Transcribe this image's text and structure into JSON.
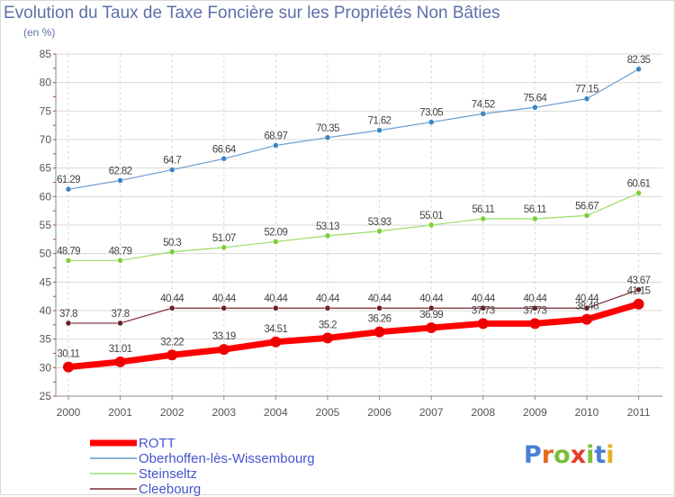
{
  "title": "Evolution du Taux de Taxe Foncière sur les Propriétés Non Bâties",
  "unit_label": "(en %)",
  "logo": {
    "text": "Proxiti",
    "colors": [
      "#4a7fd4",
      "#e66a1f",
      "#7cbf3a",
      "#e63b2e",
      "#7cbf3a",
      "#4a7fd4",
      "#e6b31f"
    ]
  },
  "chart_data": {
    "type": "line",
    "x": [
      "2000",
      "2001",
      "2002",
      "2003",
      "2004",
      "2005",
      "2006",
      "2007",
      "2008",
      "2009",
      "2010",
      "2011"
    ],
    "ylim": [
      25,
      85
    ],
    "yticks": [
      25,
      30,
      35,
      40,
      45,
      50,
      55,
      60,
      65,
      70,
      75,
      80,
      85
    ],
    "grid": true,
    "legend_position": "bottom-left",
    "series": [
      {
        "name": "Oberhoffen-lès-Wissembourg",
        "color": "#6a9cd0",
        "marker": "#3b86c4",
        "width": 1.2,
        "values": [
          61.29,
          62.82,
          64.7,
          66.64,
          68.97,
          70.35,
          71.62,
          73.05,
          74.52,
          75.64,
          77.15,
          82.35
        ],
        "labels": [
          "61.29",
          "62.82",
          "64.7",
          "66.64",
          "68.97",
          "70.35",
          "71.62",
          "73.05",
          "74.52",
          "75.64",
          "77.15",
          "82.35"
        ]
      },
      {
        "name": "Steinseltz",
        "color": "#99dd66",
        "marker": "#7ccf3a",
        "width": 1.2,
        "values": [
          48.79,
          48.79,
          50.3,
          51.07,
          52.09,
          53.13,
          53.93,
          55.01,
          56.11,
          56.11,
          56.67,
          60.61
        ],
        "labels": [
          "48.79",
          "48.79",
          "50.3",
          "51.07",
          "52.09",
          "53.13",
          "53.93",
          "55.01",
          "56.11",
          "56.11",
          "56.67",
          "60.61"
        ]
      },
      {
        "name": "Cleebourg",
        "color": "#7a2a32",
        "marker": "#6b1e28",
        "width": 1.2,
        "values": [
          37.8,
          37.8,
          40.44,
          40.44,
          40.44,
          40.44,
          40.44,
          40.44,
          40.44,
          40.44,
          40.44,
          43.67
        ],
        "labels": [
          "37.8",
          "37.8",
          "40.44",
          "40.44",
          "40.44",
          "40.44",
          "40.44",
          "40.44",
          "40.44",
          "40.44",
          "40.44",
          "43.67"
        ]
      },
      {
        "name": "ROTT",
        "color": "#ff0000",
        "marker": "#ee0000",
        "width": 7,
        "values": [
          30.11,
          31.01,
          32.22,
          33.19,
          34.51,
          35.2,
          36.26,
          36.99,
          37.73,
          37.73,
          38.48,
          41.15
        ],
        "labels": [
          "30.11",
          "31.01",
          "32.22",
          "33.19",
          "34.51",
          "35.2",
          "36.26",
          "36.99",
          "37.73",
          "37.73",
          "38.48",
          "41.15"
        ]
      }
    ],
    "legend_order": [
      "ROTT",
      "Oberhoffen-lès-Wissembourg",
      "Steinseltz",
      "Cleebourg"
    ]
  }
}
